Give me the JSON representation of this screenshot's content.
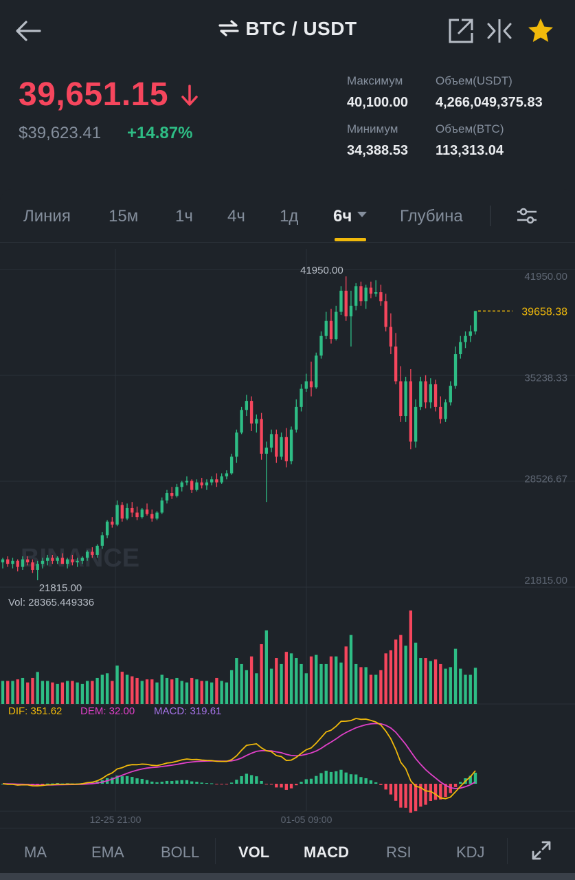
{
  "header": {
    "title": "BTC / USDT",
    "icons": [
      "back-arrow-icon",
      "swap-icon",
      "share-icon",
      "compare-icon",
      "star-icon"
    ],
    "accent": "#f0b90b"
  },
  "ticker": {
    "last_price": "39,651.15",
    "usd_price": "$39,623.41",
    "change": "+14.87%",
    "stats": {
      "high_label": "Максимум",
      "high_value": "40,100.00",
      "low_label": "Минимум",
      "low_value": "34,388.53",
      "vol_usdt_label": "Объем(USDT)",
      "vol_usdt_value": "4,266,049,375.83",
      "vol_btc_label": "Объем(BTC)",
      "vol_btc_value": "113,313.04"
    },
    "colors": {
      "down": "#f6465d",
      "up": "#2ebd85"
    }
  },
  "tabs": {
    "items": [
      "Линия",
      "15м",
      "1ч",
      "4ч",
      "1д",
      "6ч",
      "Глубина"
    ],
    "active": "6ч"
  },
  "chart_data": {
    "type": "candlestick",
    "watermark": "BINANCE",
    "price_axis": [
      "41950.00",
      "35238.33",
      "28526.67",
      "21815.00"
    ],
    "ylim": [
      21815,
      41950
    ],
    "high_marker": "41950.00",
    "low_marker": "21815.00",
    "current_price": "39658.38",
    "x_labels": [
      "12-25 21:00",
      "01-05 09:00"
    ],
    "volume_label": "Vol: 28365.449336",
    "macd": {
      "dif": "DIF: 351.62",
      "dem": "DEM: 32.00",
      "macd": "MACD: 319.61"
    },
    "macd_colors": {
      "dif": "#f0b90b",
      "dem": "#e040c8",
      "macd": "#a673e8"
    },
    "candles": [
      [
        23000,
        23300,
        22600,
        23200
      ],
      [
        23200,
        23400,
        22700,
        22900
      ],
      [
        22900,
        23300,
        22600,
        23100
      ],
      [
        23100,
        23200,
        22400,
        22700
      ],
      [
        22700,
        23400,
        22500,
        23200
      ],
      [
        23200,
        23400,
        22800,
        23000
      ],
      [
        23000,
        23200,
        22300,
        22500
      ],
      [
        22500,
        23100,
        21815,
        22900
      ],
      [
        22900,
        23300,
        22600,
        23100
      ],
      [
        23100,
        23500,
        22800,
        23300
      ],
      [
        23300,
        23500,
        22900,
        23100
      ],
      [
        23100,
        23400,
        22900,
        23300
      ],
      [
        23300,
        23600,
        23000,
        22900
      ],
      [
        22900,
        23300,
        22600,
        23200
      ],
      [
        23200,
        23500,
        22800,
        23000
      ],
      [
        23000,
        23300,
        22700,
        23100
      ],
      [
        23100,
        23400,
        22900,
        23300
      ],
      [
        23300,
        23800,
        23100,
        23700
      ],
      [
        23700,
        24000,
        23300,
        23500
      ],
      [
        23500,
        24200,
        23300,
        24100
      ],
      [
        24100,
        25000,
        23900,
        24800
      ],
      [
        24800,
        25800,
        24600,
        25700
      ],
      [
        25700,
        26000,
        25300,
        25500
      ],
      [
        25500,
        27100,
        25400,
        26800
      ],
      [
        26800,
        27000,
        25700,
        25900
      ],
      [
        25900,
        26900,
        25800,
        26600
      ],
      [
        26600,
        27000,
        26000,
        26300
      ],
      [
        26300,
        26700,
        25800,
        26000
      ],
      [
        26000,
        26600,
        25900,
        26500
      ],
      [
        26500,
        26900,
        26100,
        26200
      ],
      [
        26200,
        26500,
        25700,
        25900
      ],
      [
        25900,
        26400,
        25800,
        26300
      ],
      [
        26300,
        27300,
        26200,
        27100
      ],
      [
        27100,
        27800,
        26900,
        27600
      ],
      [
        27600,
        28000,
        27200,
        27400
      ],
      [
        27400,
        28200,
        27300,
        28000
      ],
      [
        28000,
        28400,
        27700,
        28300
      ],
      [
        28300,
        28700,
        28100,
        28400
      ],
      [
        28400,
        28500,
        27600,
        27800
      ],
      [
        27800,
        28500,
        27700,
        28300
      ],
      [
        28300,
        28600,
        27900,
        28100
      ],
      [
        28100,
        28500,
        27800,
        28300
      ],
      [
        28300,
        28700,
        28100,
        28500
      ],
      [
        28500,
        28900,
        28000,
        28300
      ],
      [
        28300,
        28900,
        28200,
        28700
      ],
      [
        28700,
        29100,
        28500,
        28900
      ],
      [
        28900,
        30200,
        28800,
        30000
      ],
      [
        30000,
        31800,
        29600,
        31600
      ],
      [
        31600,
        33300,
        31500,
        33100
      ],
      [
        33100,
        34100,
        32700,
        33700
      ],
      [
        33700,
        34000,
        31700,
        32200
      ],
      [
        32200,
        32800,
        31600,
        32500
      ],
      [
        32500,
        32900,
        29800,
        30200
      ],
      [
        30200,
        31000,
        27000,
        30600
      ],
      [
        30600,
        31800,
        30300,
        31500
      ],
      [
        31500,
        31800,
        29600,
        30000
      ],
      [
        30000,
        31600,
        29800,
        31300
      ],
      [
        31300,
        31900,
        29300,
        29700
      ],
      [
        29700,
        32000,
        29500,
        31800
      ],
      [
        31800,
        33800,
        31600,
        33300
      ],
      [
        33300,
        34800,
        33000,
        34500
      ],
      [
        34500,
        35500,
        34300,
        35000
      ],
      [
        35000,
        36300,
        34000,
        34600
      ],
      [
        34600,
        36900,
        34500,
        36700
      ],
      [
        36700,
        38300,
        36500,
        38000
      ],
      [
        38000,
        39600,
        37800,
        39000
      ],
      [
        39000,
        39800,
        37500,
        37800
      ],
      [
        37800,
        40000,
        37700,
        39600
      ],
      [
        39600,
        41300,
        39400,
        41000
      ],
      [
        41000,
        41950,
        39000,
        39300
      ],
      [
        39300,
        41000,
        37300,
        40000
      ],
      [
        40000,
        41500,
        39700,
        41300
      ],
      [
        41300,
        41600,
        40000,
        40300
      ],
      [
        40300,
        41400,
        39800,
        41200
      ],
      [
        41200,
        41600,
        40500,
        40800
      ],
      [
        40800,
        41700,
        40600,
        40900
      ],
      [
        40900,
        41400,
        40000,
        40300
      ],
      [
        40300,
        40800,
        38300,
        38600
      ],
      [
        38600,
        39500,
        36800,
        37300
      ],
      [
        37300,
        38200,
        34800,
        35000
      ],
      [
        35000,
        36000,
        32300,
        32700
      ],
      [
        32700,
        35300,
        32300,
        35000
      ],
      [
        35000,
        35800,
        30500,
        31000
      ],
      [
        31000,
        33800,
        30600,
        33300
      ],
      [
        33300,
        35300,
        33100,
        35000
      ],
      [
        35000,
        35400,
        33200,
        33600
      ],
      [
        33600,
        35200,
        33200,
        34800
      ],
      [
        34800,
        35100,
        33000,
        33300
      ],
      [
        33300,
        34000,
        32200,
        32500
      ],
      [
        32500,
        33800,
        32300,
        33600
      ],
      [
        33600,
        35000,
        33400,
        34700
      ],
      [
        34700,
        37300,
        34500,
        36800
      ],
      [
        36800,
        38000,
        36500,
        37600
      ],
      [
        37600,
        38300,
        37200,
        38000
      ],
      [
        38000,
        38700,
        37600,
        38300
      ],
      [
        38300,
        39658,
        38100,
        39658
      ]
    ]
  },
  "indicators": {
    "items": [
      "MA",
      "EMA",
      "BOLL",
      "VOL",
      "MACD",
      "RSI",
      "KDJ"
    ],
    "active": [
      "VOL",
      "MACD"
    ],
    "expand_icon": "expand-icon"
  }
}
